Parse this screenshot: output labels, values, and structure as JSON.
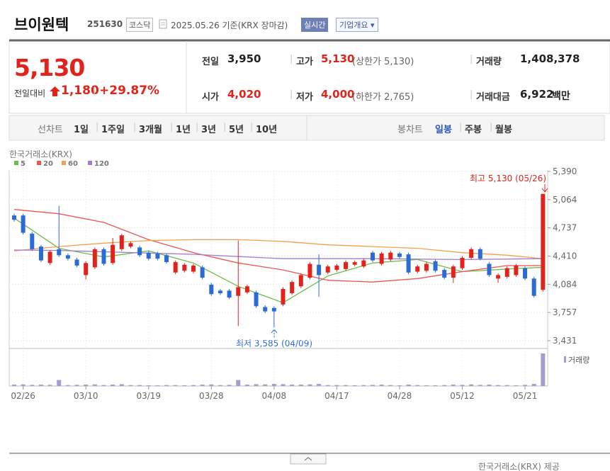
{
  "header": {
    "name": "브이원텍",
    "code": "251630",
    "market": "코스닥",
    "date": "2025.05.26 기준(KRX 장마감)",
    "realtime": "실시간",
    "company_info": "기업개요"
  },
  "quote": {
    "price": "5,130",
    "change_label": "전일대비",
    "change": "1,180",
    "change_rate": "+29.87%",
    "stats": [
      {
        "label": "전일",
        "value": "3,950"
      },
      {
        "label": "고가",
        "value": "5,130",
        "note": "(상한가 5,130)"
      },
      {
        "label": "거래량",
        "value": "1,408,378"
      },
      {
        "label": "시가",
        "value": "4,020"
      },
      {
        "label": "저가",
        "value": "4,000",
        "note": "(하한가 2,765)"
      },
      {
        "label": "거래대금",
        "value": "6,922",
        "unit": "백만"
      }
    ]
  },
  "tabs": {
    "line_chart": "선차트",
    "line_periods": [
      "1일",
      "1주일",
      "3개월",
      "1년",
      "3년",
      "5년",
      "10년"
    ],
    "candle_chart": "봉차트",
    "candle_periods": [
      "일봉",
      "주봉",
      "월봉"
    ]
  },
  "chart_data": {
    "type": "candlestick",
    "source": "한국거래소(KRX)",
    "candles": {
      "up_color": "#e1231c",
      "down_color": "#2b6bd6",
      "open": [
        4880,
        4880,
        4670,
        4520,
        4330,
        4490,
        4420,
        4370,
        4190,
        4280,
        4490,
        4330,
        4490,
        4520,
        4510,
        4450,
        4440,
        4420,
        4220,
        4240,
        4230,
        4280,
        4080,
        4010,
        4010,
        3950,
        3990,
        3990,
        3820,
        3810,
        3850,
        3980,
        4060,
        4160,
        4310,
        4220,
        4250,
        4260,
        4310,
        4290,
        4450,
        4320,
        4370,
        4440,
        4430,
        4230,
        4240,
        4350,
        4250,
        4160,
        4270,
        4390,
        4490,
        4320,
        4150,
        4170,
        4190,
        4270,
        4150,
        4020
      ],
      "high": [
        4900,
        4900,
        4690,
        4540,
        4480,
        4990,
        4440,
        4390,
        4350,
        4510,
        4510,
        4620,
        4670,
        4580,
        4530,
        4470,
        4460,
        4440,
        4360,
        4330,
        4320,
        4300,
        4100,
        4030,
        4030,
        4590,
        4080,
        4010,
        3840,
        3830,
        4050,
        4130,
        4210,
        4340,
        4430,
        4310,
        4320,
        4360,
        4360,
        4380,
        4470,
        4460,
        4470,
        4460,
        4450,
        4310,
        4340,
        4370,
        4270,
        4310,
        4410,
        4510,
        4510,
        4340,
        4210,
        4290,
        4320,
        4290,
        4170,
        5130
      ],
      "low": [
        4810,
        4660,
        4470,
        4340,
        4310,
        4400,
        4360,
        4280,
        4140,
        4260,
        4300,
        4310,
        4470,
        4500,
        4400,
        4360,
        4360,
        4320,
        4200,
        4220,
        4210,
        4140,
        3950,
        3960,
        3910,
        3600,
        3970,
        3810,
        3750,
        3585,
        3830,
        3960,
        4040,
        4140,
        3940,
        4200,
        4230,
        4240,
        4290,
        4270,
        4340,
        4300,
        4350,
        4380,
        4200,
        4210,
        4220,
        4220,
        4140,
        4100,
        4250,
        4370,
        4360,
        4170,
        4100,
        4150,
        4170,
        4130,
        3930,
        4000
      ],
      "close": [
        4830,
        4680,
        4490,
        4360,
        4460,
        4420,
        4380,
        4300,
        4330,
        4490,
        4320,
        4540,
        4650,
        4560,
        4420,
        4380,
        4380,
        4340,
        4340,
        4310,
        4300,
        4160,
        3970,
        3980,
        3930,
        4050,
        4060,
        3830,
        3770,
        3770,
        4030,
        4110,
        4190,
        4320,
        4190,
        4290,
        4300,
        4340,
        4340,
        4360,
        4360,
        4440,
        4450,
        4400,
        4220,
        4290,
        4320,
        4240,
        4160,
        4290,
        4390,
        4490,
        4380,
        4190,
        4190,
        4270,
        4300,
        4150,
        3950,
        5130
      ]
    },
    "ylim": [
      3431,
      5390
    ],
    "yticks": [
      {
        "value": 3431,
        "label": "3,431"
      },
      {
        "value": 3757,
        "label": "3,757"
      },
      {
        "value": 4084,
        "label": "4,084"
      },
      {
        "value": 4410,
        "label": "4,410"
      },
      {
        "value": 4737,
        "label": "4,737"
      },
      {
        "value": 5064,
        "label": "5,064"
      },
      {
        "value": 5390,
        "label": "5,390"
      }
    ],
    "xticks": [
      {
        "value": 1,
        "label": "02/26"
      },
      {
        "value": 8,
        "label": "03/10"
      },
      {
        "value": 15,
        "label": "03/19"
      },
      {
        "value": 22,
        "label": "03/28"
      },
      {
        "value": 29,
        "label": "04/08"
      },
      {
        "value": 36,
        "label": "04/17"
      },
      {
        "value": 43,
        "label": "04/28"
      },
      {
        "value": 50,
        "label": "05/12"
      },
      {
        "value": 57,
        "label": "05/21"
      }
    ],
    "ma": {
      "x": [
        0,
        5,
        10,
        15,
        20,
        25,
        30,
        35,
        40,
        45,
        50,
        55,
        59
      ],
      "series": [
        {
          "name": "5",
          "color": "#6cbf4b",
          "values": [
            4850,
            4500,
            4400,
            4470,
            4330,
            4060,
            3870,
            4180,
            4330,
            4370,
            4230,
            4260,
            4280
          ]
        },
        {
          "name": "20",
          "color": "#ee5550",
          "values": [
            4950,
            4900,
            4800,
            4600,
            4450,
            4330,
            4250,
            4130,
            4110,
            4150,
            4230,
            4300,
            4300
          ]
        },
        {
          "name": "60",
          "color": "#f4a04a",
          "values": [
            4470,
            4520,
            4560,
            4590,
            4600,
            4600,
            4580,
            4540,
            4520,
            4500,
            4450,
            4420,
            4380
          ]
        },
        {
          "name": "120",
          "color": "#a57ad6",
          "values": [
            4480,
            4475,
            4460,
            4445,
            4430,
            4405,
            4380,
            4380,
            4380,
            4375,
            4370,
            4375,
            4380
          ]
        }
      ]
    },
    "volume": {
      "name": "거래량",
      "color": "#a79bd0",
      "values": [
        60000,
        70000,
        50000,
        60000,
        50000,
        260000,
        40000,
        50000,
        60000,
        70000,
        40000,
        60000,
        80000,
        40000,
        40000,
        30000,
        30000,
        40000,
        40000,
        30000,
        40000,
        60000,
        70000,
        40000,
        50000,
        260000,
        60000,
        80000,
        70000,
        90000,
        80000,
        60000,
        60000,
        70000,
        90000,
        40000,
        40000,
        40000,
        30000,
        40000,
        50000,
        60000,
        40000,
        30000,
        60000,
        40000,
        30000,
        30000,
        40000,
        60000,
        50000,
        70000,
        50000,
        60000,
        40000,
        40000,
        30000,
        50000,
        90000,
        1408378
      ]
    },
    "high_label": "최고 5,130 (05/26)",
    "low_label": "최저 3,585 (04/09)"
  },
  "footer": "한국거래소(KRX) 제공"
}
